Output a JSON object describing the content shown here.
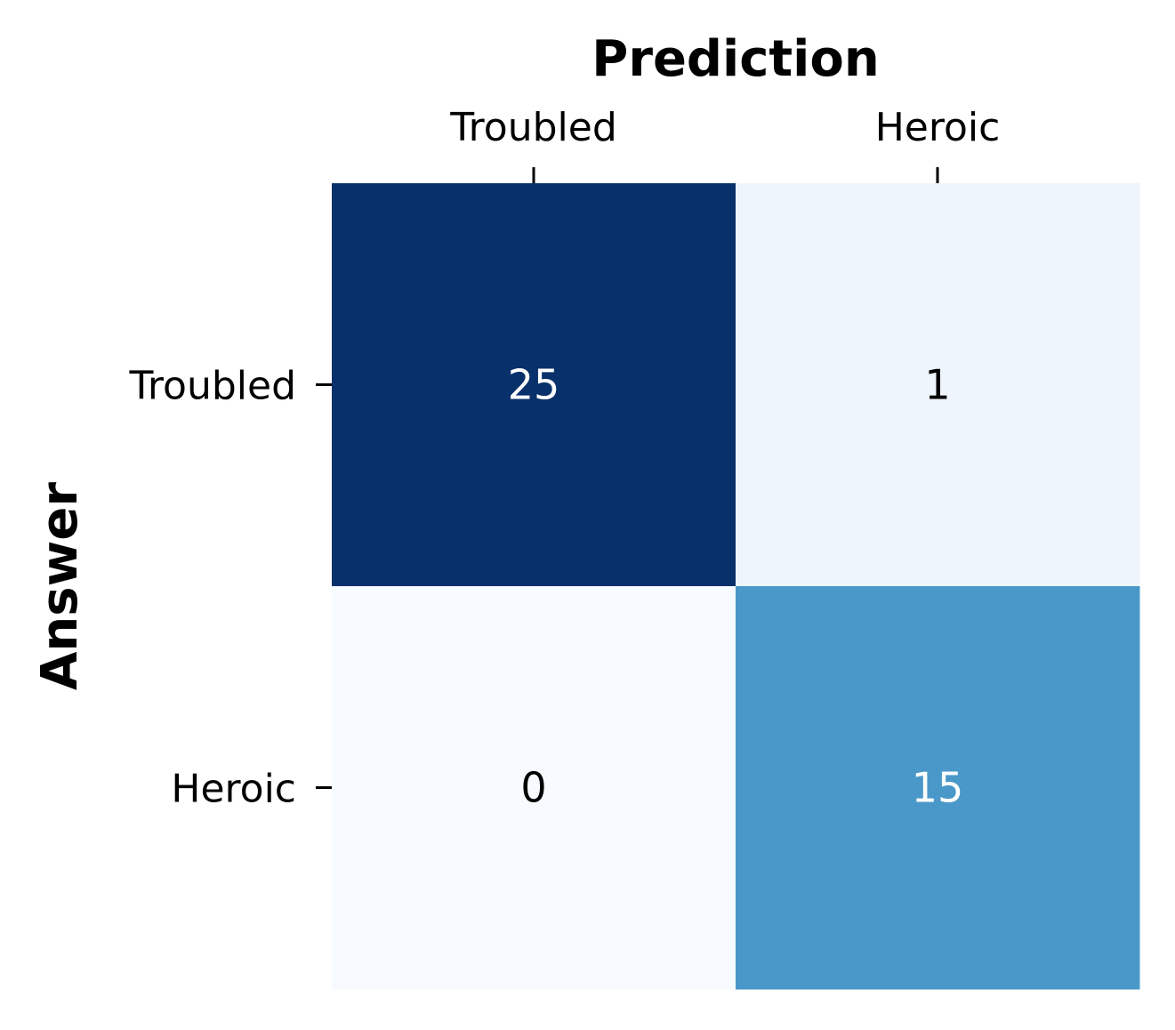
{
  "chart_data": {
    "type": "heatmap",
    "title": "",
    "xlabel": "Prediction",
    "ylabel": "Answer",
    "x_categories": [
      "Troubled",
      "Heroic"
    ],
    "y_categories": [
      "Troubled",
      "Heroic"
    ],
    "values": [
      [
        25,
        1
      ],
      [
        0,
        15
      ]
    ],
    "colorscale": "Blues",
    "colorbar": false,
    "x_axis_position": "top",
    "cell_colors": [
      [
        "#08306b",
        "#eef5fd"
      ],
      [
        "#f7fbff",
        "#4a98c9"
      ]
    ],
    "annotation_colors": [
      [
        "#ffffff",
        "#000000"
      ],
      [
        "#000000",
        "#ffffff"
      ]
    ]
  }
}
